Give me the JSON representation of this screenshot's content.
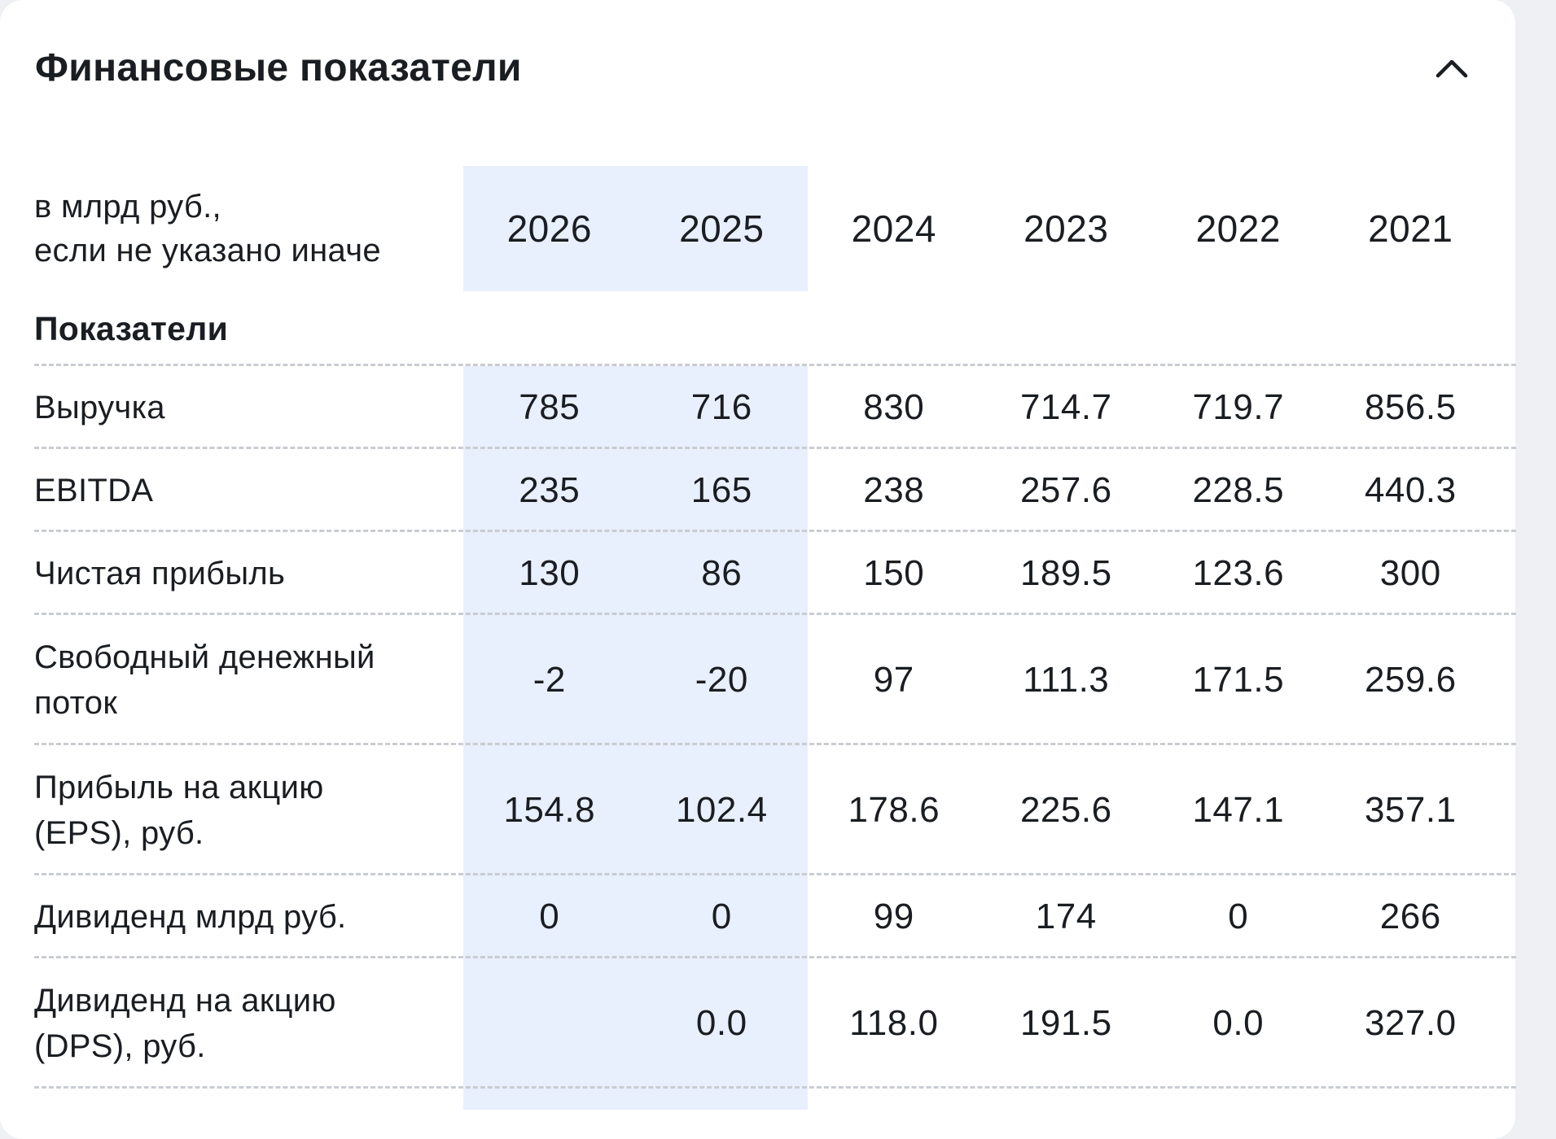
{
  "panel": {
    "title": "Финансовые показатели",
    "collapse_icon": "chevron-up-icon"
  },
  "table": {
    "unit_line1": "в млрд руб.,",
    "unit_line2": "если не указано иначе",
    "years": [
      "2026",
      "2025",
      "2024",
      "2023",
      "2022",
      "2021"
    ],
    "highlighted_years": [
      "2026",
      "2025"
    ],
    "section_title": "Показатели",
    "rows": [
      {
        "label_line1": "Выручка",
        "label_line2": "",
        "values": [
          "785",
          "716",
          "830",
          "714.7",
          "719.7",
          "856.5"
        ]
      },
      {
        "label_line1": "EBITDA",
        "label_line2": "",
        "values": [
          "235",
          "165",
          "238",
          "257.6",
          "228.5",
          "440.3"
        ]
      },
      {
        "label_line1": "Чистая прибыль",
        "label_line2": "",
        "values": [
          "130",
          "86",
          "150",
          "189.5",
          "123.6",
          "300"
        ]
      },
      {
        "label_line1": "Свободный денежный",
        "label_line2": "поток",
        "values": [
          "-2",
          "-20",
          "97",
          "111.3",
          "171.5",
          "259.6"
        ]
      },
      {
        "label_line1": "Прибыль на акцию",
        "label_line2": "(EPS), руб.",
        "values": [
          "154.8",
          "102.4",
          "178.6",
          "225.6",
          "147.1",
          "357.1"
        ]
      },
      {
        "label_line1": "Дивиденд млрд руб.",
        "label_line2": "",
        "values": [
          "0",
          "0",
          "99",
          "174",
          "0",
          "266"
        ]
      },
      {
        "label_line1": "Дивиденд на акцию",
        "label_line2": "(DPS), руб.",
        "values": [
          "",
          "0.0",
          "118.0",
          "191.5",
          "0.0",
          "327.0"
        ]
      }
    ]
  },
  "colors": {
    "highlight_column_bg": "#e8effd",
    "divider": "#c9ccd1",
    "text": "#1a1d21",
    "card_bg": "#ffffff"
  }
}
